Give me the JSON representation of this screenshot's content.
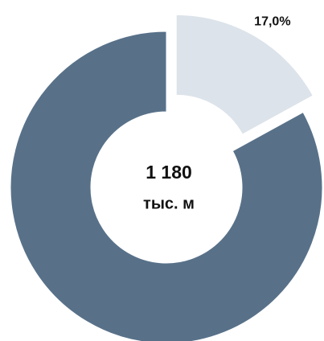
{
  "chart_data": {
    "type": "pie",
    "donut": true,
    "values": [
      17,
      83
    ],
    "value_labels": [
      "17,0%",
      null
    ],
    "colors": [
      "#dce3ea",
      "#587189"
    ],
    "exploded": [
      true,
      false
    ],
    "center_value": "1 180",
    "center_unit": "тыс. м"
  }
}
